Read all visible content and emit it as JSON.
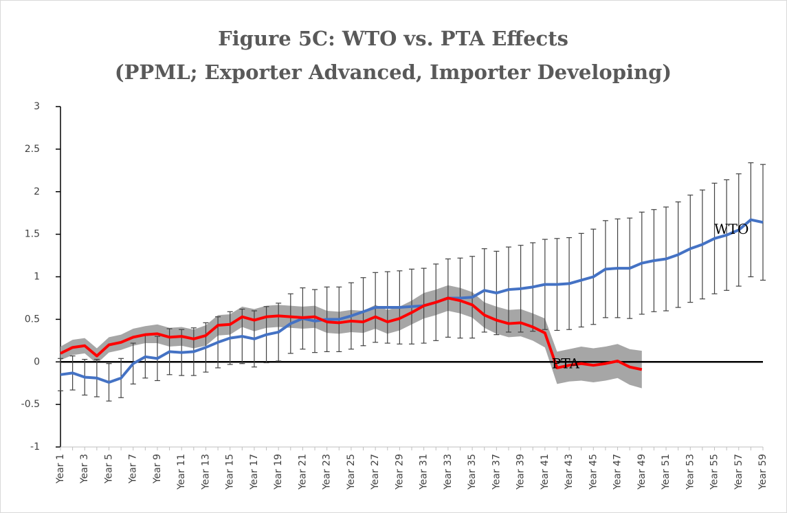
{
  "chart_data": {
    "type": "line",
    "title": "Figure 5C: WTO vs. PTA Effects",
    "subtitle": "(PPML; Exporter Advanced, Importer Developing)",
    "categories": [
      "Year 1",
      null,
      "Year 3",
      null,
      "Year 5",
      null,
      "Year 7",
      null,
      "Year 9",
      null,
      "Year 11",
      null,
      "Year 13",
      null,
      "Year 15",
      null,
      "Year 17",
      null,
      "Year 19",
      null,
      "Year 21",
      null,
      "Year 23",
      null,
      "Year 25",
      null,
      "Year 27",
      null,
      "Year 29",
      null,
      "Year 31",
      null,
      "Year 33",
      null,
      "Year 35",
      null,
      "Year 37",
      null,
      "Year 39",
      null,
      "Year 41",
      null,
      "Year 43",
      null,
      "Year 45",
      null,
      "Year 47",
      null,
      "Year 49",
      null,
      "Year 51",
      null,
      "Year 53",
      null,
      "Year 55",
      null,
      "Year 57",
      null,
      "Year 59"
    ],
    "series": [
      {
        "name": "WTO",
        "color": "#4472c4",
        "style": "error-bars",
        "values": [
          -0.15,
          -0.13,
          -0.18,
          -0.19,
          -0.24,
          -0.19,
          -0.02,
          0.06,
          0.04,
          0.12,
          0.11,
          0.12,
          0.17,
          0.23,
          0.28,
          0.3,
          0.27,
          0.32,
          0.35,
          0.45,
          0.51,
          0.48,
          0.5,
          0.5,
          0.54,
          0.59,
          0.64,
          0.64,
          0.64,
          0.65,
          0.66,
          0.7,
          0.75,
          0.75,
          0.76,
          0.84,
          0.81,
          0.85,
          0.86,
          0.88,
          0.91,
          0.91,
          0.92,
          0.96,
          1.0,
          1.09,
          1.1,
          1.1,
          1.16,
          1.19,
          1.21,
          1.26,
          1.33,
          1.38,
          1.45,
          1.49,
          1.55,
          1.67,
          1.64
        ],
        "errors": [
          0.19,
          0.2,
          0.21,
          0.22,
          0.22,
          0.23,
          0.24,
          0.25,
          0.26,
          0.27,
          0.27,
          0.28,
          0.29,
          0.3,
          0.31,
          0.32,
          0.33,
          0.33,
          0.34,
          0.35,
          0.36,
          0.37,
          0.38,
          0.38,
          0.39,
          0.4,
          0.41,
          0.42,
          0.43,
          0.44,
          0.44,
          0.45,
          0.46,
          0.47,
          0.48,
          0.49,
          0.49,
          0.5,
          0.51,
          0.52,
          0.53,
          0.54,
          0.54,
          0.55,
          0.56,
          0.57,
          0.58,
          0.59,
          0.6,
          0.6,
          0.61,
          0.62,
          0.63,
          0.64,
          0.65,
          0.65,
          0.66,
          0.67,
          0.68
        ]
      },
      {
        "name": "PTA",
        "color": "#ff0000",
        "style": "band",
        "band_color": "#a6a6a6",
        "values": [
          0.1,
          0.17,
          0.19,
          0.07,
          0.2,
          0.23,
          0.29,
          0.32,
          0.33,
          0.29,
          0.3,
          0.27,
          0.31,
          0.43,
          0.44,
          0.53,
          0.49,
          0.53,
          0.54,
          0.53,
          0.52,
          0.53,
          0.47,
          0.46,
          0.48,
          0.47,
          0.53,
          0.47,
          0.51,
          0.58,
          0.66,
          0.7,
          0.75,
          0.72,
          0.67,
          0.55,
          0.49,
          0.45,
          0.46,
          0.41,
          0.34,
          -0.07,
          -0.04,
          -0.02,
          -0.04,
          -0.02,
          0.01,
          -0.06,
          -0.09,
          null,
          null,
          null,
          null,
          null,
          null,
          null,
          null,
          null,
          null
        ],
        "errors": [
          0.08,
          0.09,
          0.09,
          0.09,
          0.09,
          0.09,
          0.1,
          0.1,
          0.11,
          0.11,
          0.11,
          0.11,
          0.12,
          0.12,
          0.12,
          0.12,
          0.13,
          0.13,
          0.13,
          0.13,
          0.13,
          0.13,
          0.13,
          0.13,
          0.13,
          0.13,
          0.14,
          0.14,
          0.14,
          0.14,
          0.15,
          0.15,
          0.15,
          0.15,
          0.15,
          0.15,
          0.16,
          0.16,
          0.16,
          0.16,
          0.17,
          0.19,
          0.19,
          0.2,
          0.2,
          0.2,
          0.2,
          0.21,
          0.22,
          null,
          null,
          null,
          null,
          null,
          null,
          null,
          null,
          null,
          null
        ]
      }
    ],
    "annotations": [
      "WTO",
      "PTA"
    ],
    "ylim": [
      -1,
      3
    ],
    "yticks": [
      -1,
      -0.5,
      0,
      0.5,
      1,
      1.5,
      2,
      2.5,
      3
    ],
    "zero_line": true,
    "grid": false
  }
}
